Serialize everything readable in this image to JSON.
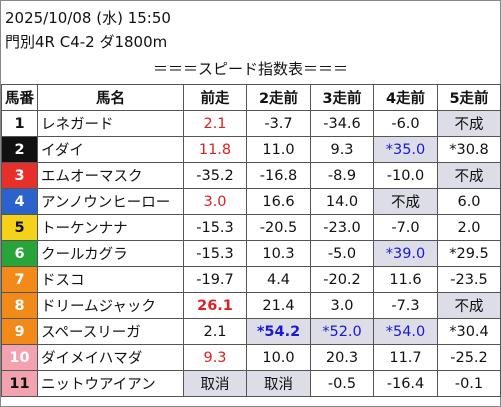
{
  "header": {
    "datetime": "2025/10/08 (水) 15:50",
    "race": "門別4R C4-2 ダ1800m"
  },
  "title": "＝＝＝スピード指数表＝＝＝",
  "columns": [
    "馬番",
    "馬名",
    "前走",
    "2走前",
    "3走前",
    "4走前",
    "5走前"
  ],
  "colors": {
    "post_bg": [
      "#ffffff",
      "#111111",
      "#e8302a",
      "#2b62cc",
      "#f5d21a",
      "#27a43a",
      "#f28a1a",
      "#f28a1a",
      "#f28a1a",
      "#f3a3b0",
      "#f3a3b0"
    ],
    "post_fg": [
      "#111111",
      "#ffffff",
      "#ffffff",
      "#ffffff",
      "#111111",
      "#ffffff",
      "#ffffff",
      "#ffffff",
      "#ffffff",
      "#ffffff",
      "#111111"
    ]
  },
  "rows": [
    {
      "num": "1",
      "name": "レネガード",
      "v": [
        {
          "t": "2.1",
          "c": "red"
        },
        {
          "t": "-3.7"
        },
        {
          "t": "-34.6"
        },
        {
          "t": "-6.0"
        },
        {
          "t": "不成",
          "c": "gray"
        }
      ]
    },
    {
      "num": "2",
      "name": "イダイ",
      "v": [
        {
          "t": "11.8",
          "c": "red"
        },
        {
          "t": "11.0"
        },
        {
          "t": "9.3"
        },
        {
          "t": "*35.0",
          "c": "blue gray"
        },
        {
          "t": "*30.8"
        }
      ]
    },
    {
      "num": "3",
      "name": "エムオーマスク",
      "v": [
        {
          "t": "-35.2"
        },
        {
          "t": "-16.8"
        },
        {
          "t": "-8.9"
        },
        {
          "t": "-10.0"
        },
        {
          "t": "不成",
          "c": "gray"
        }
      ]
    },
    {
      "num": "4",
      "name": "アンノウンヒーロー",
      "v": [
        {
          "t": "3.0",
          "c": "red"
        },
        {
          "t": "16.6"
        },
        {
          "t": "14.0"
        },
        {
          "t": "不成",
          "c": "gray"
        },
        {
          "t": "6.0"
        }
      ]
    },
    {
      "num": "5",
      "name": "トーケンナナ",
      "v": [
        {
          "t": "-15.3"
        },
        {
          "t": "-20.5"
        },
        {
          "t": "-23.0"
        },
        {
          "t": "-7.0"
        },
        {
          "t": "2.0"
        }
      ]
    },
    {
      "num": "6",
      "name": "クールカグラ",
      "v": [
        {
          "t": "-15.3"
        },
        {
          "t": "10.3"
        },
        {
          "t": "-5.0"
        },
        {
          "t": "*39.0",
          "c": "blue gray"
        },
        {
          "t": "*29.5"
        }
      ]
    },
    {
      "num": "7",
      "name": "ドスコ",
      "v": [
        {
          "t": "-19.7"
        },
        {
          "t": "4.4"
        },
        {
          "t": "-20.2"
        },
        {
          "t": "11.6"
        },
        {
          "t": "-23.5"
        }
      ]
    },
    {
      "num": "8",
      "name": "ドリームジャック",
      "v": [
        {
          "t": "26.1",
          "c": "redb"
        },
        {
          "t": "21.4"
        },
        {
          "t": "3.0"
        },
        {
          "t": "-7.3"
        },
        {
          "t": "不成",
          "c": "gray"
        }
      ]
    },
    {
      "num": "9",
      "name": "スペースリーガ",
      "v": [
        {
          "t": "2.1"
        },
        {
          "t": "*54.2",
          "c": "blueb gray"
        },
        {
          "t": "*52.0",
          "c": "blue gray"
        },
        {
          "t": "*54.0",
          "c": "blue gray"
        },
        {
          "t": "*30.4"
        }
      ]
    },
    {
      "num": "10",
      "name": "ダイメイハマダ",
      "v": [
        {
          "t": "9.3",
          "c": "red"
        },
        {
          "t": "10.0"
        },
        {
          "t": "20.3"
        },
        {
          "t": "11.7"
        },
        {
          "t": "-25.2"
        }
      ]
    },
    {
      "num": "11",
      "name": "ニットウアイアン",
      "v": [
        {
          "t": "取消",
          "c": "gray"
        },
        {
          "t": "取消",
          "c": "gray"
        },
        {
          "t": "-0.5"
        },
        {
          "t": "-16.4"
        },
        {
          "t": "-0.1"
        }
      ]
    }
  ]
}
